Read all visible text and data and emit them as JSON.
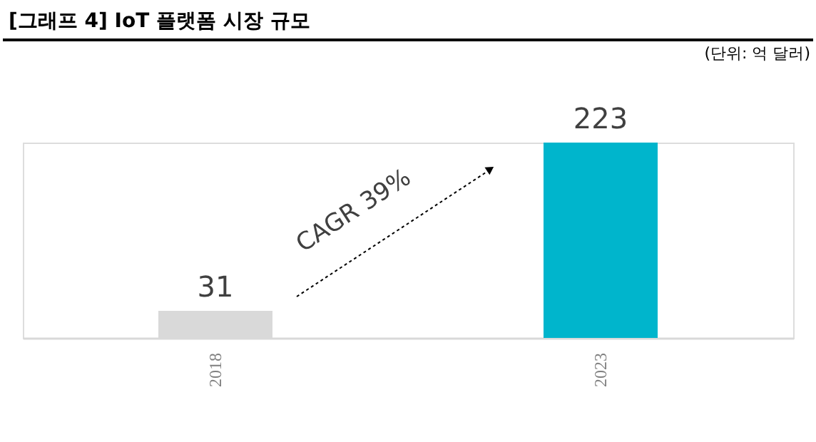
{
  "chart_data": {
    "type": "bar",
    "title": "[그래프 4] IoT 플랫폼 시장 규모",
    "categories": [
      "2018",
      "2023"
    ],
    "values": [
      31,
      223
    ],
    "colors": [
      "#d9d9d9",
      "#00b5cc"
    ],
    "data_labels": true,
    "annotations": [
      "(단위: 억 달러)",
      "CAGR 39%"
    ]
  }
}
